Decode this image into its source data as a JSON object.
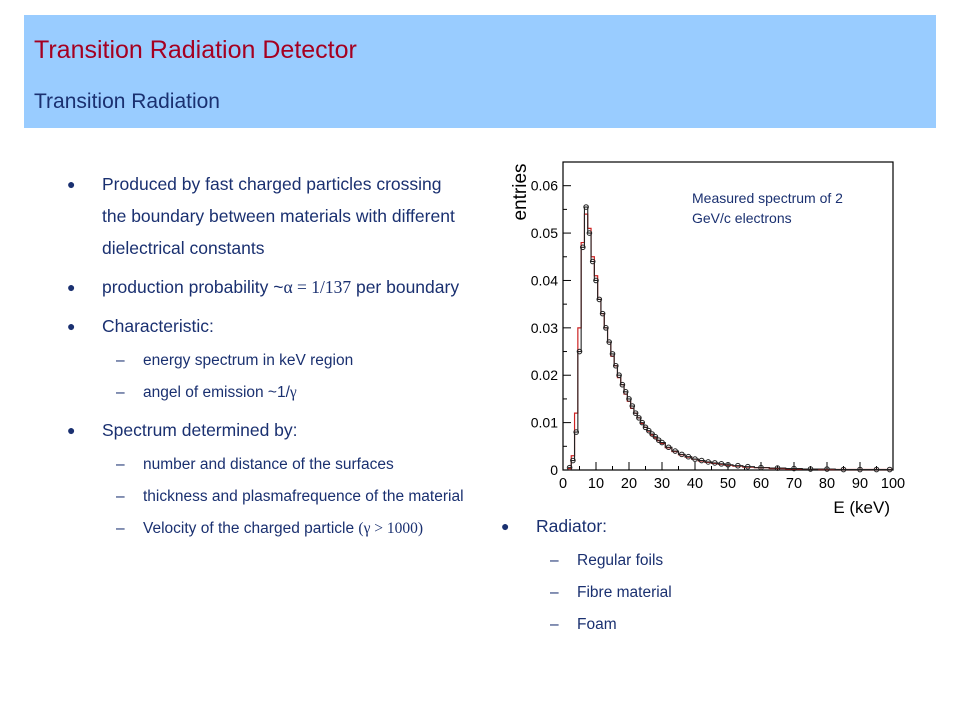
{
  "header": {
    "title": "Transition Radiation  Detector",
    "subtitle": "Transition Radiation"
  },
  "left_bullets": {
    "b1": "Produced by fast charged particles crossing the boundary between materials with different dielectrical constants",
    "b2_text": "production probability ~",
    "b2_formula": "α = 1/137",
    "b2_tail": " per boundary",
    "b3": "Characteristic:",
    "b3_sub1": "energy spectrum in keV region",
    "b3_sub2_text": "angel of emission ~1/",
    "b3_sub2_sym": "γ",
    "b4": "Spectrum determined by:",
    "b4_sub1": "number and distance of the surfaces",
    "b4_sub2": "thickness and plasmafrequence of the material",
    "b4_sub3_text": "Velocity of the charged particle ",
    "b4_sub3_formula": "(γ > 1000)"
  },
  "right_bullets": {
    "b1": "Radiator:",
    "sub1": "Regular foils",
    "sub2": "Fibre material",
    "sub3": "Foam"
  },
  "chart_data": {
    "type": "line",
    "title": "",
    "annotation": "Measured spectrum of 2 GeV/c electrons",
    "xlabel": "E (keV)",
    "ylabel": "entries",
    "xlim": [
      0,
      100
    ],
    "ylim": [
      0,
      0.065
    ],
    "xticks": [
      0,
      10,
      20,
      30,
      40,
      50,
      60,
      70,
      80,
      90,
      100
    ],
    "yticks": [
      0,
      0.01,
      0.02,
      0.03,
      0.04,
      0.05,
      0.06
    ],
    "ytick_labels": [
      "0",
      "0.01",
      "0.02",
      "0.03",
      "0.04",
      "0.05",
      "0.06"
    ],
    "colors": {
      "measured": "#222222",
      "simulated": "#cc2222",
      "frame": "#000000"
    },
    "series": [
      {
        "marker": "circle",
        "x": [
          2,
          3,
          4,
          5,
          6,
          7,
          8,
          9,
          10,
          11,
          12,
          13,
          14,
          15,
          16,
          17,
          18,
          19,
          20,
          21,
          22,
          23,
          24,
          25,
          26,
          27,
          28,
          29,
          30,
          32,
          34,
          36,
          38,
          40,
          42,
          44,
          46,
          48,
          50,
          53,
          56,
          60,
          65,
          70,
          75,
          80,
          85,
          90,
          95,
          99
        ],
        "y": [
          0.0005,
          0.002,
          0.008,
          0.025,
          0.047,
          0.0555,
          0.05,
          0.044,
          0.04,
          0.036,
          0.033,
          0.03,
          0.027,
          0.0245,
          0.022,
          0.02,
          0.018,
          0.0165,
          0.015,
          0.0135,
          0.012,
          0.011,
          0.01,
          0.009,
          0.0083,
          0.0076,
          0.007,
          0.0063,
          0.0058,
          0.0048,
          0.004,
          0.0033,
          0.0028,
          0.0023,
          0.002,
          0.0017,
          0.0015,
          0.0013,
          0.0011,
          0.0009,
          0.0007,
          0.0005,
          0.0004,
          0.0003,
          0.0002,
          0.0002,
          0.0001,
          0.0001,
          0.0001,
          0.0001
        ]
      },
      {
        "marker": "none",
        "x": [
          2,
          3,
          4,
          5,
          6,
          7,
          8,
          9,
          10,
          11,
          12,
          13,
          14,
          15,
          16,
          17,
          18,
          19,
          20,
          21,
          22,
          23,
          24,
          25,
          26,
          27,
          28,
          29,
          30,
          32,
          34,
          36,
          38,
          40,
          42,
          44,
          46,
          48,
          50,
          53,
          56,
          60,
          65,
          70,
          75,
          80,
          85,
          90,
          95,
          99
        ],
        "y": [
          0.0003,
          0.003,
          0.012,
          0.03,
          0.048,
          0.054,
          0.051,
          0.045,
          0.041,
          0.036,
          0.033,
          0.03,
          0.027,
          0.024,
          0.022,
          0.0195,
          0.018,
          0.016,
          0.0145,
          0.013,
          0.012,
          0.011,
          0.0098,
          0.009,
          0.0082,
          0.0074,
          0.0068,
          0.0062,
          0.0056,
          0.0047,
          0.0039,
          0.0032,
          0.0027,
          0.0023,
          0.0019,
          0.0016,
          0.0014,
          0.0012,
          0.001,
          0.0008,
          0.0006,
          0.0005,
          0.0003,
          0.0002,
          0.0002,
          0.0001,
          0.0001,
          0.0001,
          0.0001,
          0.0001
        ]
      }
    ]
  }
}
